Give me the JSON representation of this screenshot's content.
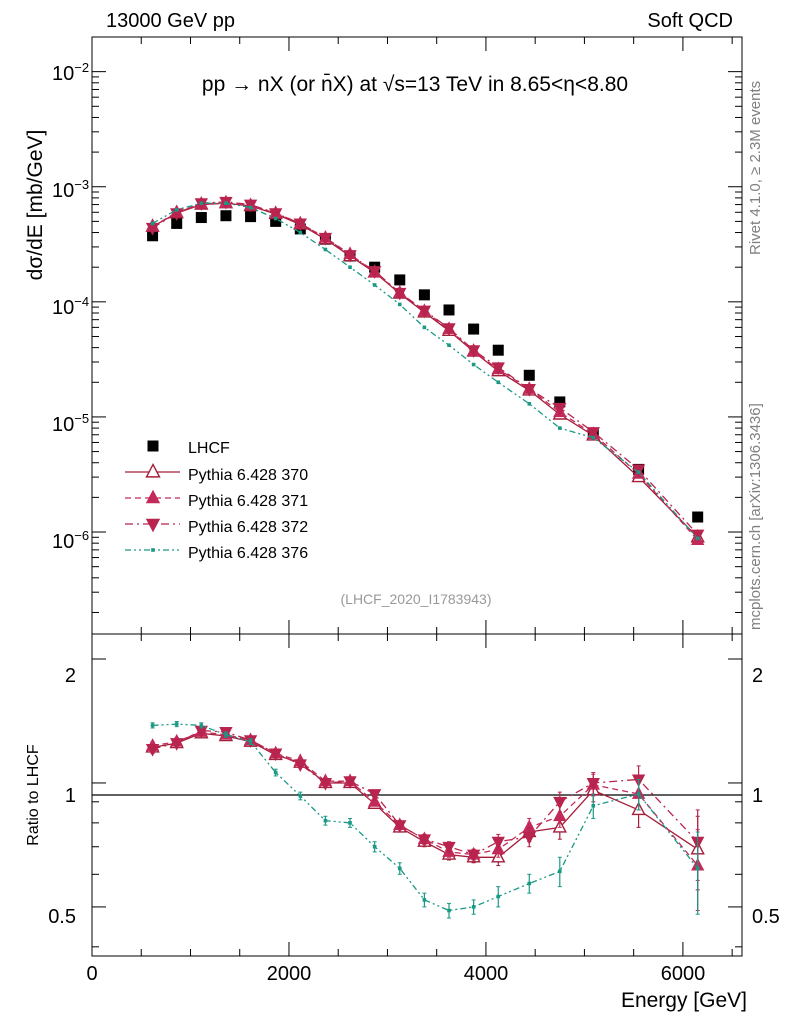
{
  "header": {
    "left": "13000 GeV pp",
    "right": "Soft QCD",
    "side_top": "Rivet 4.1.0, ≥ 2.3M events",
    "side_bottom": "mcplots.cern.ch [arXiv:1306.3436]",
    "analysis_tag": "(LHCF_2020_I1783943)"
  },
  "chart_data": {
    "type": "scatter",
    "title": "pp → nX (or n̄X) at √s=13 TeV in 8.65<η<8.80",
    "xlabel": "Energy [GeV]",
    "ylabel": "dσ/dE [mb/GeV]",
    "ratio_ylabel": "Ratio to LHCF",
    "xlim": [
      0,
      6600
    ],
    "ylim": [
      1.3e-07,
      0.02
    ],
    "yscale": "log",
    "ratio_ylim": [
      0.38,
      2.3
    ],
    "x_ticks": [
      "0",
      "2000",
      "4000",
      "6000"
    ],
    "y_ticks": [
      "10^-6",
      "10^-5",
      "10^-4",
      "10^-3",
      "10^-2"
    ],
    "ratio_ticks": [
      "0.5",
      "1",
      "2"
    ],
    "x": [
      615,
      860,
      1110,
      1360,
      1610,
      1865,
      2115,
      2370,
      2620,
      2870,
      3125,
      3375,
      3625,
      3875,
      4125,
      4440,
      4750,
      5090,
      5550,
      6150
    ],
    "series": [
      {
        "name": "LHCF",
        "style": "data",
        "color": "#000000",
        "values": [
          0.000375,
          0.00048,
          0.00054,
          0.00056,
          0.00055,
          0.0005,
          0.00043,
          0.00035,
          0.00025,
          0.0002,
          0.000155,
          0.000115,
          8.5e-05,
          5.8e-05,
          3.8e-05,
          2.3e-05,
          1.35e-05,
          7.2e-06,
          3.5e-06,
          1.35e-06
        ]
      },
      {
        "name": "Pythia 6.428 370",
        "style": "solid",
        "marker": "triangle-up-open",
        "color": "#a51d38",
        "values": [
          0.00045,
          0.00059,
          0.0007,
          0.00072,
          0.00068,
          0.00058,
          0.00047,
          0.00035,
          0.00025,
          0.00018,
          0.000118,
          8.1e-05,
          5.6e-05,
          3.7e-05,
          2.5e-05,
          1.7e-05,
          1.05e-05,
          6.9e-06,
          3e-06,
          9e-07
        ],
        "ratio": [
          1.22,
          1.25,
          1.32,
          1.3,
          1.26,
          1.17,
          1.12,
          1.0,
          1.0,
          0.89,
          0.78,
          0.72,
          0.67,
          0.66,
          0.66,
          0.76,
          0.78,
          0.96,
          0.86,
          0.69
        ],
        "ratio_err": [
          0.03,
          0.03,
          0.03,
          0.03,
          0.03,
          0.02,
          0.02,
          0.02,
          0.02,
          0.02,
          0.02,
          0.02,
          0.02,
          0.02,
          0.03,
          0.04,
          0.05,
          0.06,
          0.08,
          0.14
        ]
      },
      {
        "name": "Pythia 6.428 371",
        "style": "dashed",
        "marker": "triangle-up",
        "color": "#c22a5a",
        "values": [
          0.00045,
          0.0006,
          0.00071,
          0.00072,
          0.00069,
          0.00059,
          0.00048,
          0.00036,
          0.00026,
          0.00018,
          0.00012,
          8.3e-05,
          5.8e-05,
          3.7e-05,
          2.6e-05,
          1.75e-05,
          1.1e-05,
          7.1e-06,
          3.2e-06,
          8.5e-07
        ],
        "ratio": [
          1.23,
          1.26,
          1.33,
          1.31,
          1.27,
          1.18,
          1.13,
          1.01,
          1.01,
          0.9,
          0.79,
          0.73,
          0.68,
          0.67,
          0.69,
          0.78,
          0.83,
          0.99,
          0.94,
          0.63
        ],
        "ratio_err": [
          0.03,
          0.03,
          0.03,
          0.03,
          0.03,
          0.02,
          0.02,
          0.02,
          0.02,
          0.02,
          0.02,
          0.02,
          0.02,
          0.02,
          0.03,
          0.04,
          0.05,
          0.06,
          0.08,
          0.14
        ]
      },
      {
        "name": "Pythia 6.428 372",
        "style": "dashdot",
        "marker": "triangle-down",
        "color": "#b8244e",
        "values": [
          0.00044,
          0.00059,
          0.00072,
          0.00074,
          0.0007,
          0.00059,
          0.00048,
          0.00036,
          0.000255,
          0.000185,
          0.00012,
          8.4e-05,
          5.9e-05,
          3.8e-05,
          2.7e-05,
          1.75e-05,
          1.2e-05,
          7.4e-06,
          3.5e-06,
          9.5e-07
        ],
        "ratio": [
          1.21,
          1.25,
          1.34,
          1.33,
          1.27,
          1.18,
          1.11,
          1.0,
          1.01,
          0.94,
          0.79,
          0.73,
          0.7,
          0.67,
          0.72,
          0.74,
          0.9,
          1.0,
          1.02,
          0.72
        ],
        "ratio_err": [
          0.03,
          0.03,
          0.03,
          0.03,
          0.03,
          0.02,
          0.02,
          0.02,
          0.02,
          0.02,
          0.02,
          0.02,
          0.02,
          0.02,
          0.03,
          0.04,
          0.05,
          0.06,
          0.08,
          0.14
        ]
      },
      {
        "name": "Pythia 6.428 376",
        "style": "dashdotdot",
        "marker": "dot",
        "color": "#1a9985",
        "values": [
          0.00048,
          0.00063,
          0.00072,
          0.00072,
          0.00066,
          0.00053,
          0.0004,
          0.000285,
          0.0002,
          0.00014,
          9.5e-05,
          6e-05,
          4.2e-05,
          2.85e-05,
          2e-05,
          1.3e-05,
          8e-06,
          6.6e-06,
          3.3e-06,
          8.8e-07
        ],
        "ratio": [
          1.38,
          1.39,
          1.38,
          1.31,
          1.26,
          1.06,
          0.93,
          0.81,
          0.8,
          0.7,
          0.62,
          0.52,
          0.49,
          0.5,
          0.53,
          0.57,
          0.61,
          0.88,
          0.94,
          0.62
        ],
        "ratio_err": [
          0.02,
          0.02,
          0.02,
          0.02,
          0.02,
          0.02,
          0.02,
          0.02,
          0.02,
          0.02,
          0.02,
          0.02,
          0.02,
          0.02,
          0.03,
          0.03,
          0.05,
          0.06,
          0.08,
          0.14
        ]
      }
    ]
  }
}
